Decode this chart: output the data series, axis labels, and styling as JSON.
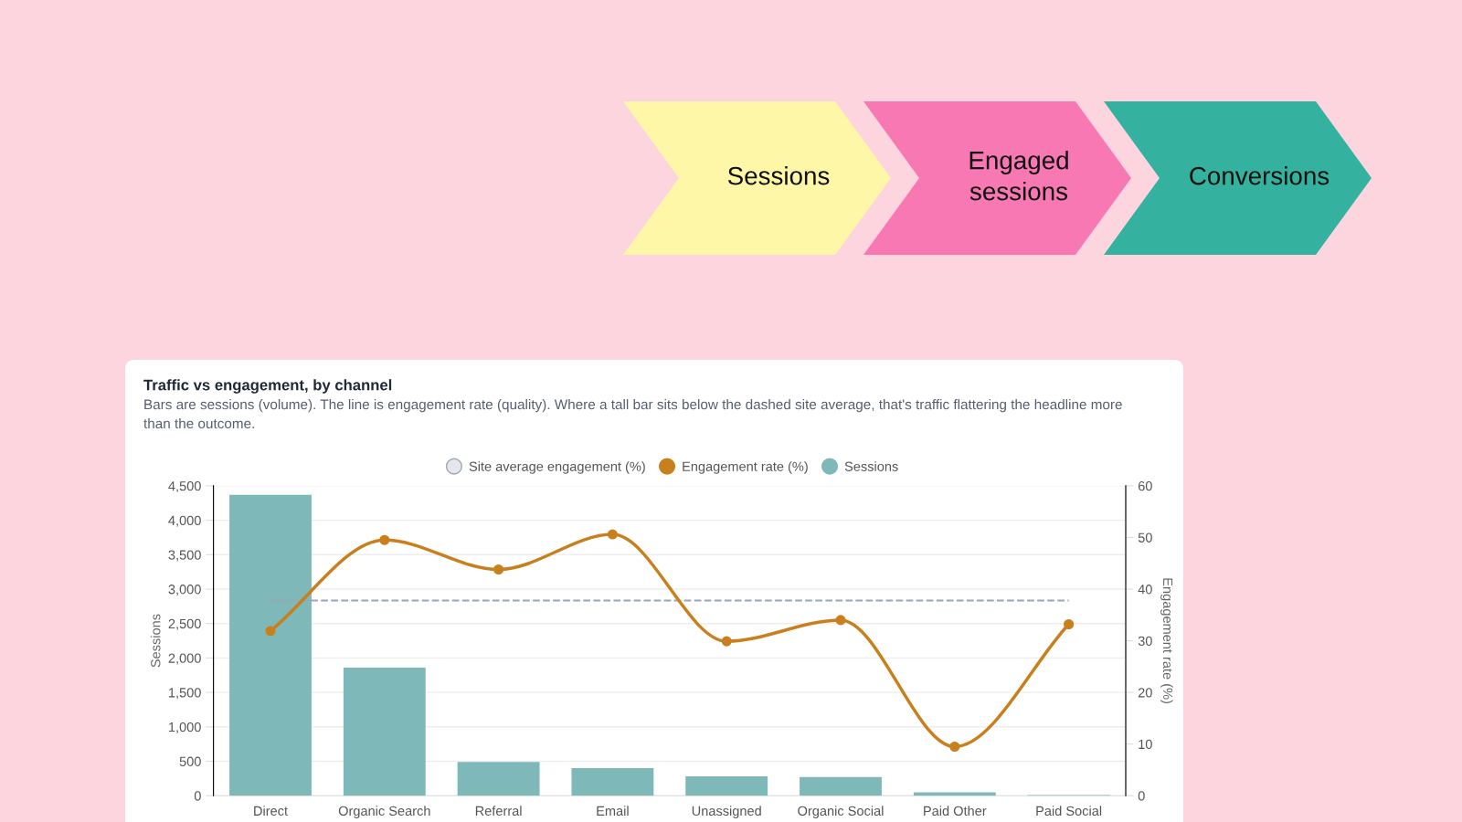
{
  "chart_data": {
    "type": "bar",
    "title": "Traffic vs engagement, by channel",
    "subtitle": "Bars are sessions (volume). The line is engagement rate (quality). Where a tall bar sits below the dashed site average, that's traffic flattering the headline more than the outcome.",
    "annotations": [
      "Sessions",
      "Engaged sessions",
      "Conversions"
    ],
    "ylabel": "Sessions",
    "y2label": "Engagement rate (%)",
    "categories": [
      "Direct",
      "Organic Search",
      "Referral",
      "Email",
      "Unassigned",
      "Organic Social",
      "Paid Other",
      "Paid Social"
    ],
    "series": [
      {
        "name": "Engagement rate (%)",
        "type": "line",
        "axis": "y2",
        "color": "#c8801e",
        "marker": "circle",
        "line_style": "solid",
        "values": [
          31.9,
          49.5,
          43.8,
          50.6,
          29.9,
          34.0,
          9.5,
          33.2
        ]
      },
      {
        "name": "Sessions",
        "color": "#7fb8b8",
        "values": [
          4370,
          1860,
          490,
          400,
          280,
          270,
          50,
          10
        ]
      }
    ],
    "ref_lines": [
      {
        "axis": "y2",
        "value": 37.8,
        "label": "Site average engagement (%)",
        "color": "#9aa5b8",
        "line_style": "dashed"
      }
    ],
    "ylim": [
      0,
      4500
    ],
    "yticks": [
      0,
      500,
      {
        "value": 1000,
        "label": "1,000"
      },
      {
        "value": 1500,
        "label": "1,500"
      },
      {
        "value": 2000,
        "label": "2,000"
      },
      {
        "value": 2500,
        "label": "2,500"
      },
      {
        "value": 3000,
        "label": "3,000"
      },
      {
        "value": 3500,
        "label": "3,500"
      },
      {
        "value": 4000,
        "label": "4,000"
      },
      {
        "value": 4500,
        "label": "4,500"
      }
    ],
    "y2lim": [
      0,
      60
    ],
    "y2ticks": [
      0,
      10,
      20,
      30,
      40,
      50,
      60
    ],
    "grid": true,
    "legend": "top"
  }
}
